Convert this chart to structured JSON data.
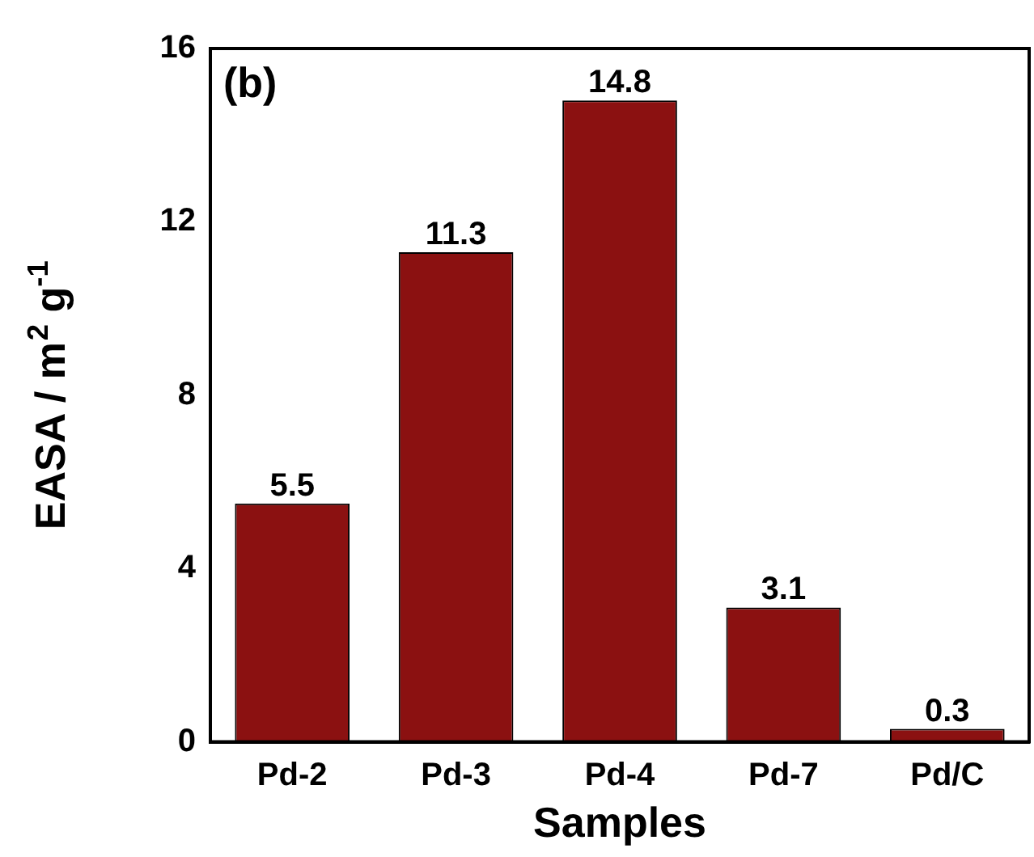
{
  "chart_data": {
    "type": "bar",
    "xlabel": "Samples",
    "ylabel": "EASA / m$^{2}$ g$^{-1}$",
    "annotations": [
      "(b)"
    ],
    "categories": [
      "Pd-2",
      "Pd-3",
      "Pd-4",
      "Pd-7",
      "Pd/C"
    ],
    "values": [
      5.5,
      11.3,
      14.8,
      3.1,
      0.3
    ],
    "color": "#8b1111",
    "ylim": [
      0,
      16
    ],
    "yticks": [
      0,
      4,
      8,
      12,
      16
    ],
    "grid": false,
    "legend": false,
    "data_labels": true
  }
}
